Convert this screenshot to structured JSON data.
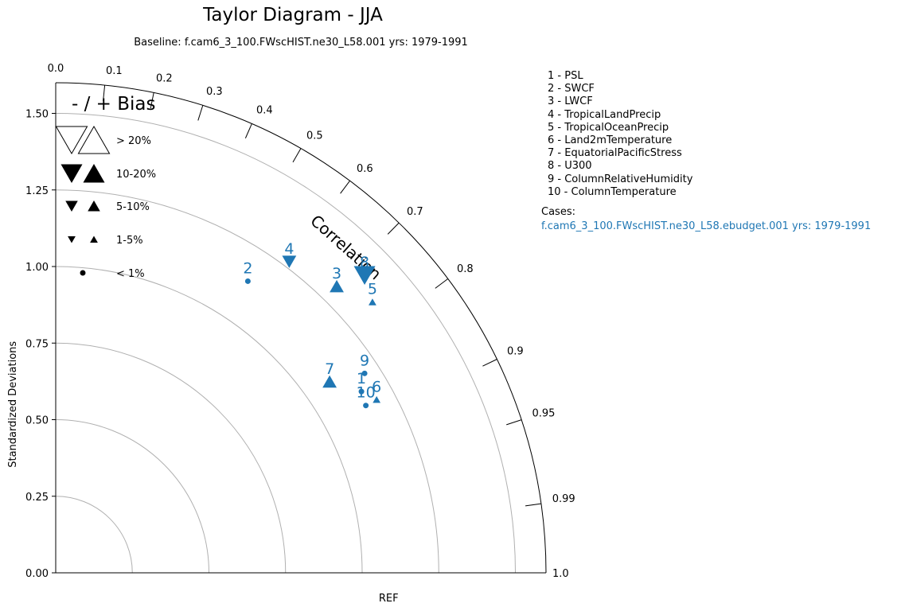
{
  "title": "Taylor Diagram - JJA",
  "subtitle": "Baseline: f.cam6_3_100.FWscHIST.ne30_L58.001  yrs: 1979-1991",
  "variables": [
    "1 - PSL",
    "2 - SWCF",
    "3 - LWCF",
    "4 - TropicalLandPrecip",
    "5 - TropicalOceanPrecip",
    "6 - Land2mTemperature",
    "7 - EquatorialPacificStress",
    "8 - U300",
    "9 - ColumnRelativeHumidity",
    "10 - ColumnTemperature"
  ],
  "cases_label": "Cases:",
  "case_name": "f.cam6_3_100.FWscHIST.ne30_L58.ebudget.001  yrs: 1979-1991",
  "colors": {
    "case": "#1f77b4",
    "grid": "#b0b0b0",
    "axis": "#000000"
  },
  "chart_data": {
    "type": "scatter",
    "polar": "taylor",
    "ylabel": "Standardized Deviations",
    "xlabel": "REF",
    "corr_label": "Correlation",
    "std_range": [
      0,
      1.6
    ],
    "std_ticks": [
      "0.00",
      "0.25",
      "0.50",
      "0.75",
      "1.00",
      "1.25",
      "1.50"
    ],
    "std_tick_values": [
      0,
      0.25,
      0.5,
      0.75,
      1.0,
      1.25,
      1.5
    ],
    "rms_arcs": [
      0.25,
      0.5,
      0.75,
      1.0,
      1.25,
      1.5
    ],
    "corr_ticks": [
      0.0,
      0.1,
      0.2,
      0.3,
      0.4,
      0.5,
      0.6,
      0.7,
      0.8,
      0.9,
      0.95,
      0.99,
      1.0
    ],
    "corr_tick_labels": [
      "0.0",
      "0.1",
      "0.2",
      "0.3",
      "0.4",
      "0.5",
      "0.6",
      "0.7",
      "0.8",
      "0.9",
      "0.95",
      "0.99",
      "1.0"
    ],
    "legend": {
      "title": "- / + Bias",
      "entries": [
        {
          "label": "> 20%",
          "marker": "open-triangles"
        },
        {
          "label": "10-20%",
          "marker": "large-triangles"
        },
        {
          "label": "5-10%",
          "marker": "medium-triangles"
        },
        {
          "label": "1-5%",
          "marker": "small-triangles"
        },
        {
          "label": "< 1%",
          "marker": "dot"
        }
      ]
    },
    "points": [
      {
        "id": "1",
        "corr": 0.86,
        "std": 1.16,
        "marker": "dot"
      },
      {
        "id": "2",
        "corr": 0.55,
        "std": 1.14,
        "marker": "dot"
      },
      {
        "id": "3",
        "corr": 0.7,
        "std": 1.31,
        "marker": "up",
        "size": "large"
      },
      {
        "id": "4",
        "corr": 0.6,
        "std": 1.27,
        "marker": "down",
        "size": "large"
      },
      {
        "id": "5",
        "corr": 0.76,
        "std": 1.36,
        "marker": "up",
        "size": "small"
      },
      {
        "id": "6",
        "corr": 0.88,
        "std": 1.19,
        "marker": "up",
        "size": "small"
      },
      {
        "id": "7",
        "corr": 0.82,
        "std": 1.09,
        "marker": "up",
        "size": "large"
      },
      {
        "id": "8",
        "corr": 0.72,
        "std": 1.4,
        "marker": "down",
        "size": "xlarge"
      },
      {
        "id": "9",
        "corr": 0.84,
        "std": 1.2,
        "marker": "dot"
      },
      {
        "id": "10",
        "corr": 0.88,
        "std": 1.15,
        "marker": "dot"
      }
    ]
  }
}
